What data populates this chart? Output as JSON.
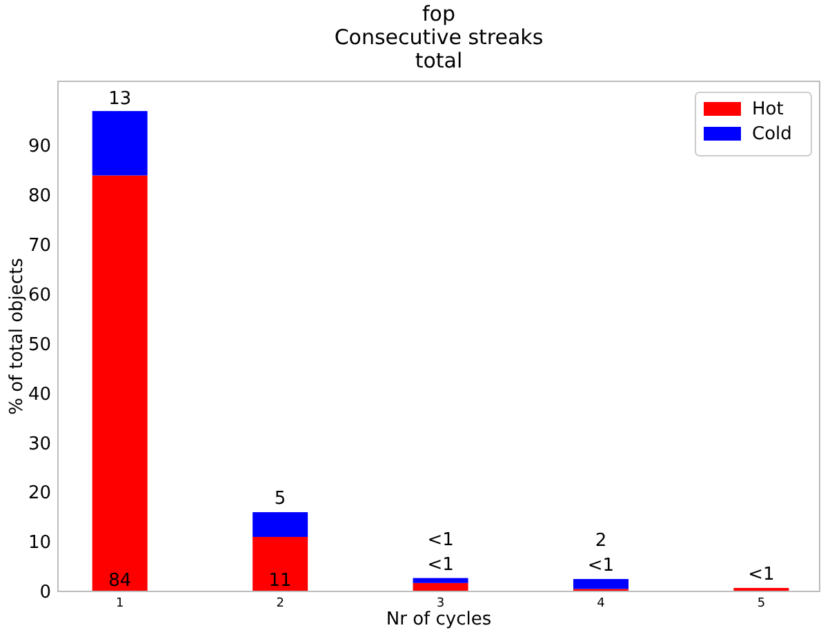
{
  "chart_data": {
    "type": "bar",
    "title": "fop\nConsecutive streaks\ntotal",
    "xlabel": "Nr of cycles",
    "ylabel": "% of total objects",
    "categories": [
      "1",
      "2",
      "3",
      "4",
      "5"
    ],
    "stacked": true,
    "ylim": [
      0,
      103
    ],
    "yticks": [
      0,
      10,
      20,
      30,
      40,
      50,
      60,
      70,
      80,
      90
    ],
    "legend": "top right",
    "grid": false,
    "series": [
      {
        "name": "Hot",
        "color": "#ff0000",
        "values": [
          84,
          11,
          1.7,
          0.5,
          0.7
        ],
        "value_labels": [
          "84",
          "11",
          "<1",
          "<1",
          "<1"
        ]
      },
      {
        "name": "Cold",
        "color": "#0000ff",
        "values": [
          13,
          5,
          1.0,
          2,
          0
        ],
        "value_labels": [
          "13",
          "5",
          "<1",
          "2",
          null
        ]
      }
    ]
  }
}
